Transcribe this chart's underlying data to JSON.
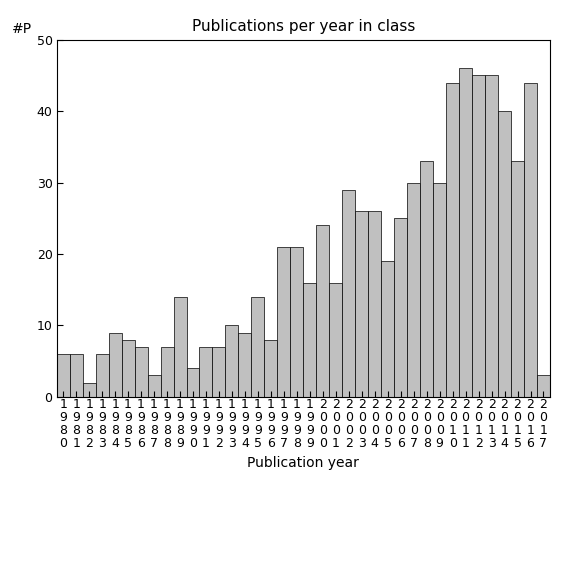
{
  "title": "Publications per year in class",
  "xlabel": "Publication year",
  "ylabel": "#P",
  "years": [
    1980,
    1981,
    1982,
    1983,
    1984,
    1985,
    1986,
    1987,
    1988,
    1989,
    1990,
    1991,
    1992,
    1993,
    1994,
    1995,
    1996,
    1997,
    1998,
    1999,
    2000,
    2001,
    2002,
    2003,
    2004,
    2005,
    2006,
    2007,
    2008,
    2009,
    2010,
    2011,
    2012,
    2013,
    2014,
    2015,
    2016,
    2017
  ],
  "values": [
    6,
    6,
    2,
    6,
    9,
    8,
    7,
    3,
    7,
    14,
    4,
    7,
    7,
    10,
    9,
    14,
    8,
    21,
    21,
    16,
    24,
    16,
    29,
    26,
    26,
    19,
    25,
    30,
    33,
    30,
    44,
    46,
    45,
    45,
    40,
    33,
    44,
    3
  ],
  "bar_color": "#c0c0c0",
  "bar_edgecolor": "#000000",
  "ylim": [
    0,
    50
  ],
  "yticks": [
    0,
    10,
    20,
    30,
    40,
    50
  ],
  "background_color": "#ffffff",
  "title_fontsize": 11,
  "label_fontsize": 10,
  "tick_fontsize": 9
}
